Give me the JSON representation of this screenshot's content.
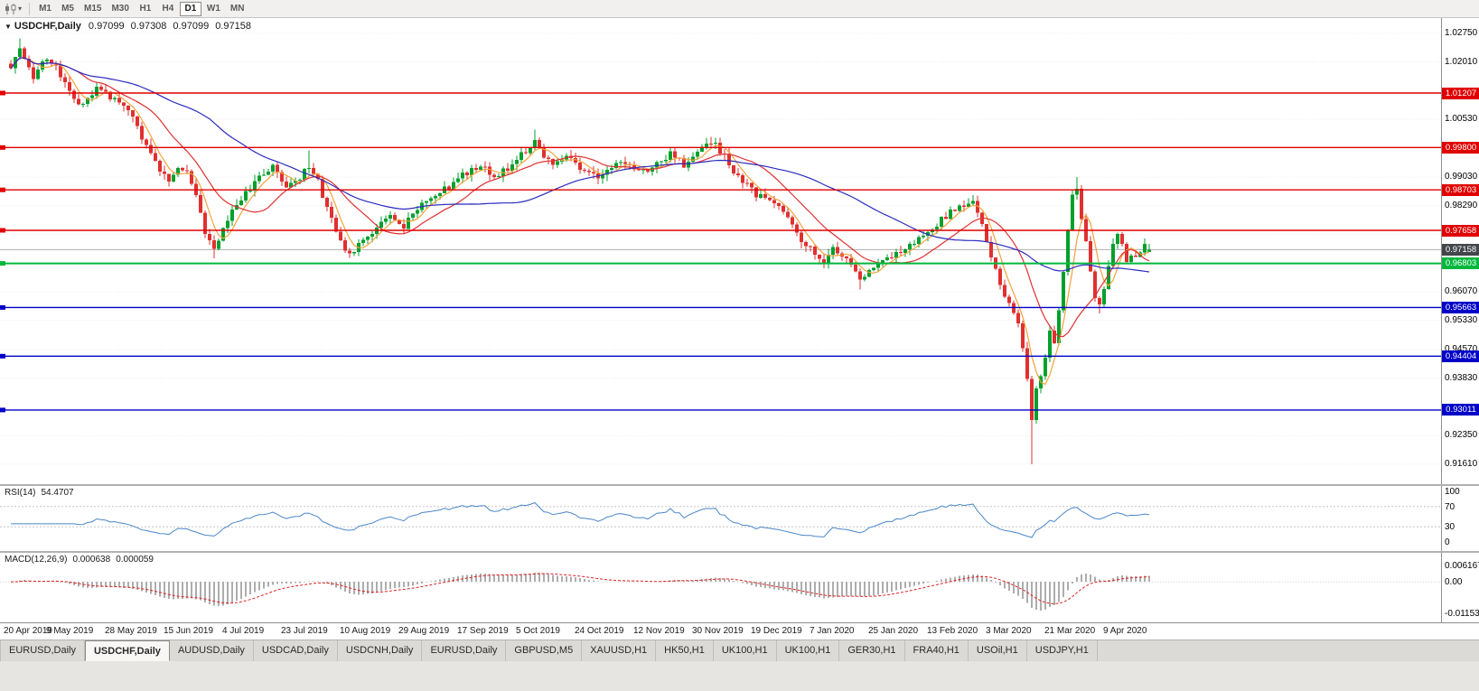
{
  "toolbar": {
    "caret": "▾",
    "timeframes": [
      {
        "label": "M1",
        "active": false
      },
      {
        "label": "M5",
        "active": false
      },
      {
        "label": "M15",
        "active": false
      },
      {
        "label": "M30",
        "active": false
      },
      {
        "label": "H1",
        "active": false
      },
      {
        "label": "H4",
        "active": false
      },
      {
        "label": "D1",
        "active": true
      },
      {
        "label": "W1",
        "active": false
      },
      {
        "label": "MN",
        "active": false
      }
    ]
  },
  "chart": {
    "symbol_line": {
      "collapse": "▼",
      "title": "USDCHF,Daily",
      "open": "0.97099",
      "high": "0.97308",
      "low": "0.97099",
      "close": "0.97158"
    },
    "axis_labels": [
      "1.02750",
      "1.02010",
      "1.00530",
      "0.99030",
      "0.98290",
      "0.97550",
      "0.96070",
      "0.95330",
      "0.94570",
      "0.93830",
      "0.92350",
      "0.91610"
    ],
    "hlines": [
      {
        "price": 1.01207,
        "label": "1.01207",
        "color": "#e00000",
        "kind": "resistance"
      },
      {
        "price": 0.998,
        "label": "0.99800",
        "color": "#e00000",
        "kind": "resistance"
      },
      {
        "price": 0.98703,
        "label": "0.98703",
        "color": "#e00000",
        "kind": "resistance"
      },
      {
        "price": 0.97658,
        "label": "0.97658",
        "color": "#e00000",
        "kind": "resistance"
      },
      {
        "price": 0.96803,
        "label": "0.96803",
        "color": "#00b83c",
        "kind": "support"
      },
      {
        "price": 0.95663,
        "label": "0.95663",
        "color": "#0000c8",
        "kind": "support"
      },
      {
        "price": 0.94404,
        "label": "0.94404",
        "color": "#0000c8",
        "kind": "support"
      },
      {
        "price": 0.93011,
        "label": "0.93011",
        "color": "#0000c8",
        "kind": "support"
      }
    ],
    "current_price": {
      "label": "0.97158",
      "price": 0.97158,
      "badge_color": "#43464b",
      "line_color": "#b0b0b0"
    }
  },
  "rsi": {
    "name": "RSI(14)",
    "value": "54.4707",
    "period": 14,
    "axis_labels": [
      "100",
      "70",
      "30",
      "0"
    ],
    "levels": [
      70,
      30
    ],
    "line_color": "#4a86c8"
  },
  "macd": {
    "name": "MACD(12,26,9)",
    "value_macd": "0.000638",
    "value_signal": "0.000059",
    "fast": 12,
    "slow": 26,
    "signal": 9,
    "axis_labels": [
      "0.006167",
      "0.00",
      "-0.01153"
    ],
    "hist_color": "#adadad",
    "signal_color": "#e02020"
  },
  "tabs": [
    {
      "label": "EURUSD,Daily",
      "active": false
    },
    {
      "label": "USDCHF,Daily",
      "active": true
    },
    {
      "label": "AUDUSD,Daily",
      "active": false
    },
    {
      "label": "USDCAD,Daily",
      "active": false
    },
    {
      "label": "USDCNH,Daily",
      "active": false
    },
    {
      "label": "EURUSD,Daily",
      "active": false
    },
    {
      "label": "GBPUSD,M5",
      "active": false
    },
    {
      "label": "XAUUSD,H1",
      "active": false
    },
    {
      "label": "HK50,H1",
      "active": false
    },
    {
      "label": "UK100,H1",
      "active": false
    },
    {
      "label": "UK100,H1",
      "active": false
    },
    {
      "label": "GER30,H1",
      "active": false
    },
    {
      "label": "FRA40,H1",
      "active": false
    },
    {
      "label": "USOil,H1",
      "active": false
    },
    {
      "label": "USDJPY,H1",
      "active": false
    }
  ],
  "chart_data": {
    "type": "candlestick",
    "symbol": "USDCHF",
    "timeframe": "Daily",
    "current_ohlc": {
      "open": 0.97099,
      "high": 0.97308,
      "low": 0.97099,
      "close": 0.97158
    },
    "y_range": [
      0.9128,
      1.0296
    ],
    "num_candles": 253,
    "candle_colors": {
      "up": "#00a02c",
      "down": "#e03030"
    },
    "ma_lines": [
      {
        "period": 5,
        "color": "#f2a33c"
      },
      {
        "period": 15,
        "color": "#e03030"
      },
      {
        "period": 45,
        "color": "#2b2bbf"
      }
    ],
    "macd_scale": [
      0.008,
      -0.0125
    ],
    "date_labels": [
      "20 Apr 2019",
      "9 May 2019",
      "28 May 2019",
      "15 Jun 2019",
      "4 Jul 2019",
      "23 Jul 2019",
      "10 Aug 2019",
      "29 Aug 2019",
      "17 Sep 2019",
      "5 Oct 2019",
      "24 Oct 2019",
      "12 Nov 2019",
      "30 Nov 2019",
      "19 Dec 2019",
      "7 Jan 2020",
      "25 Jan 2020",
      "13 Feb 2020",
      "3 Mar 2020",
      "21 Mar 2020",
      "9 Apr 2020"
    ],
    "keyframes": [
      [
        0,
        1.0185
      ],
      [
        2,
        1.0235
      ],
      [
        5,
        1.016
      ],
      [
        8,
        1.0215
      ],
      [
        11,
        1.017
      ],
      [
        13,
        1.0125
      ],
      [
        16,
        1.0085
      ],
      [
        19,
        1.0135
      ],
      [
        23,
        1.0105
      ],
      [
        26,
        1.0075
      ],
      [
        29,
        1.0005
      ],
      [
        32,
        0.994
      ],
      [
        35,
        0.9885
      ],
      [
        37,
        0.993
      ],
      [
        39,
        0.9915
      ],
      [
        41,
        0.985
      ],
      [
        43,
        0.9762
      ],
      [
        45,
        0.9712
      ],
      [
        47,
        0.9768
      ],
      [
        49,
        0.982
      ],
      [
        52,
        0.9865
      ],
      [
        55,
        0.9902
      ],
      [
        58,
        0.993
      ],
      [
        61,
        0.9872
      ],
      [
        64,
        0.99
      ],
      [
        66,
        0.9932
      ],
      [
        68,
        0.989
      ],
      [
        70,
        0.9825
      ],
      [
        72,
        0.9762
      ],
      [
        75,
        0.97
      ],
      [
        78,
        0.9745
      ],
      [
        81,
        0.9775
      ],
      [
        84,
        0.9802
      ],
      [
        87,
        0.9778
      ],
      [
        91,
        0.9832
      ],
      [
        94,
        0.9856
      ],
      [
        97,
        0.988
      ],
      [
        100,
        0.9908
      ],
      [
        104,
        0.9936
      ],
      [
        107,
        0.9906
      ],
      [
        110,
        0.9928
      ],
      [
        113,
        0.9962
      ],
      [
        116,
        0.9992
      ],
      [
        117,
        0.9976
      ],
      [
        120,
        0.9936
      ],
      [
        123,
        0.9956
      ],
      [
        126,
        0.9926
      ],
      [
        130,
        0.9896
      ],
      [
        133,
        0.9924
      ],
      [
        136,
        0.9946
      ],
      [
        139,
        0.9916
      ],
      [
        143,
        0.9936
      ],
      [
        146,
        0.9962
      ],
      [
        149,
        0.9936
      ],
      [
        152,
        0.9974
      ],
      [
        155,
        0.9996
      ],
      [
        156,
        0.9988
      ],
      [
        159,
        0.9936
      ],
      [
        162,
        0.9892
      ],
      [
        165,
        0.9856
      ],
      [
        169,
        0.9838
      ],
      [
        172,
        0.9792
      ],
      [
        175,
        0.9742
      ],
      [
        178,
        0.9702
      ],
      [
        180,
        0.9676
      ],
      [
        182,
        0.9714
      ],
      [
        185,
        0.9698
      ],
      [
        188,
        0.9642
      ],
      [
        191,
        0.9672
      ],
      [
        195,
        0.9696
      ],
      [
        198,
        0.9722
      ],
      [
        201,
        0.9746
      ],
      [
        204,
        0.9772
      ],
      [
        208,
        0.9812
      ],
      [
        211,
        0.983
      ],
      [
        213,
        0.9846
      ],
      [
        215,
        0.978
      ],
      [
        217,
        0.97
      ],
      [
        219,
        0.9618
      ],
      [
        221,
        0.9576
      ],
      [
        223,
        0.9532
      ],
      [
        225,
        0.9382
      ],
      [
        226,
        0.9282
      ],
      [
        227,
        0.9352
      ],
      [
        228,
        0.9392
      ],
      [
        229,
        0.9428
      ],
      [
        230,
        0.9502
      ],
      [
        231,
        0.9482
      ],
      [
        232,
        0.9562
      ],
      [
        233,
        0.9662
      ],
      [
        234,
        0.9762
      ],
      [
        235,
        0.9852
      ],
      [
        236,
        0.9872
      ],
      [
        237,
        0.98
      ],
      [
        238,
        0.9732
      ],
      [
        239,
        0.9662
      ],
      [
        240,
        0.9592
      ],
      [
        241,
        0.9572
      ],
      [
        242,
        0.9622
      ],
      [
        243,
        0.9682
      ],
      [
        244,
        0.9732
      ],
      [
        245,
        0.9756
      ],
      [
        246,
        0.9722
      ],
      [
        247,
        0.9682
      ],
      [
        248,
        0.9702
      ],
      [
        249,
        0.9688
      ],
      [
        250,
        0.9706
      ],
      [
        251,
        0.9732
      ],
      [
        252,
        0.97158
      ]
    ],
    "spikes": [
      {
        "i": 2,
        "high": 1.0262
      },
      {
        "i": 45,
        "low": 0.9693
      },
      {
        "i": 66,
        "high": 0.9973
      },
      {
        "i": 75,
        "low": 0.9694
      },
      {
        "i": 116,
        "high": 1.0026
      },
      {
        "i": 155,
        "high": 1.0008
      },
      {
        "i": 188,
        "low": 0.9613
      },
      {
        "i": 226,
        "low": 0.9161
      },
      {
        "i": 236,
        "high": 0.9903
      },
      {
        "i": 241,
        "low": 0.9551
      }
    ]
  }
}
